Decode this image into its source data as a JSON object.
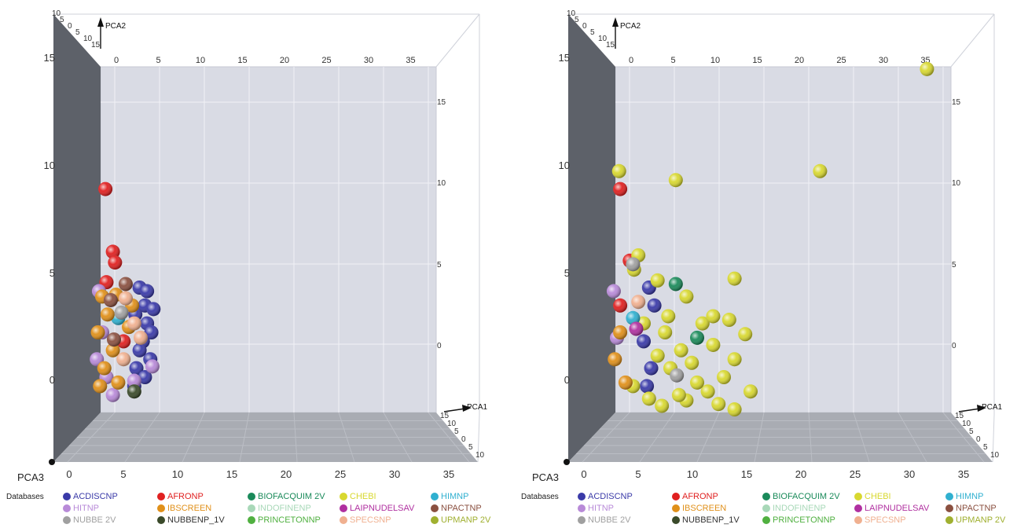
{
  "chart_data": [
    {
      "type": "scatter",
      "xlabel": "PCA1",
      "ylabel": "PCA2",
      "zlabel": "PCA3",
      "x_ticks": [
        "0",
        "5",
        "10",
        "15",
        "20",
        "25",
        "30",
        "35"
      ],
      "y_ticks": [
        "15",
        "10",
        "5",
        "0"
      ],
      "right_ticks": [
        "15",
        "10",
        "5",
        "0"
      ],
      "top_ticks": [
        "0",
        "5",
        "10",
        "15",
        "20",
        "25",
        "30",
        "35"
      ],
      "corner_ticks": [
        "10",
        "5",
        "0",
        "5",
        "10",
        "15"
      ],
      "depth_ticks": [
        "15",
        "10",
        "5",
        "0",
        "5",
        "10"
      ],
      "xlim": [
        0,
        35
      ],
      "ylim": [
        -2,
        17
      ],
      "grid": true,
      "series": [
        {
          "name": "ACDISCNP",
          "color": "#3a3aa8",
          "points": [
            [
              3.5,
              5
            ],
            [
              4,
              4
            ],
            [
              4.2,
              3
            ],
            [
              3.8,
              2
            ],
            [
              4.5,
              1
            ],
            [
              3.2,
              0.5
            ],
            [
              4,
              0
            ],
            [
              3,
              -0.5
            ],
            [
              4.6,
              2.5
            ],
            [
              3.5,
              1.5
            ],
            [
              4.2,
              4.8
            ],
            [
              3.1,
              3.5
            ],
            [
              4.8,
              3.8
            ]
          ]
        },
        {
          "name": "AFRONP",
          "color": "#e02020",
          "points": [
            [
              0.3,
              10.5
            ],
            [
              1,
              7
            ],
            [
              1.2,
              6.4
            ],
            [
              0.4,
              5.3
            ],
            [
              2,
              2
            ]
          ]
        },
        {
          "name": "BIOFACQUIM 2V",
          "color": "#1a8a5a",
          "points": []
        },
        {
          "name": "CHEBI",
          "color": "#d8d830",
          "points": []
        },
        {
          "name": "HIMNP",
          "color": "#30b0d0",
          "points": [
            [
              1.5,
              3.3
            ]
          ]
        },
        {
          "name": "HITNP",
          "color": "#b88ad8",
          "points": [
            [
              0,
              2.5
            ],
            [
              -0.5,
              1
            ],
            [
              0.4,
              0
            ],
            [
              1,
              -1
            ],
            [
              4.7,
              0.6
            ],
            [
              3,
              -0.2
            ],
            [
              -0.3,
              4.8
            ]
          ]
        },
        {
          "name": "IBSCREEN",
          "color": "#e0901a",
          "points": [
            [
              0,
              4.5
            ],
            [
              0.5,
              3.5
            ],
            [
              -0.4,
              2.5
            ],
            [
              1,
              1.5
            ],
            [
              0.2,
              0.5
            ],
            [
              1.5,
              -0.3
            ],
            [
              2.8,
              4
            ],
            [
              2.5,
              2.8
            ],
            [
              -0.2,
              -0.5
            ],
            [
              1.3,
              4.6
            ]
          ]
        },
        {
          "name": "LAIPNUDELSAV",
          "color": "#b030a0",
          "points": []
        },
        {
          "name": "NPACTNP",
          "color": "#8a5040",
          "points": [
            [
              0.8,
              4.3
            ],
            [
              2.2,
              5.2
            ],
            [
              1.1,
              2.1
            ]
          ]
        },
        {
          "name": "NUBBE 2V",
          "color": "#a0a0a0",
          "points": [
            [
              1.8,
              3.6
            ]
          ]
        },
        {
          "name": "NUBBENP_1V",
          "color": "#3a4a2a",
          "points": [
            [
              3,
              -0.8
            ]
          ]
        },
        {
          "name": "PRINCETONNP",
          "color": "#50b040",
          "points": []
        },
        {
          "name": "SPECSNP",
          "color": "#f0b090",
          "points": [
            [
              2.2,
              4.4
            ],
            [
              3,
              3
            ],
            [
              2,
              1
            ],
            [
              3.6,
              2.2
            ]
          ]
        },
        {
          "name": "UPMANP 2V",
          "color": "#a0b030",
          "points": []
        }
      ]
    },
    {
      "type": "scatter",
      "xlabel": "PCA1",
      "ylabel": "PCA2",
      "zlabel": "PCA3",
      "x_ticks": [
        "0",
        "5",
        "10",
        "15",
        "20",
        "25",
        "30",
        "35"
      ],
      "y_ticks": [
        "15",
        "10",
        "5",
        "0"
      ],
      "right_ticks": [
        "15",
        "10",
        "5",
        "0"
      ],
      "top_ticks": [
        "0",
        "5",
        "10",
        "15",
        "20",
        "25",
        "30",
        "35"
      ],
      "corner_ticks": [
        "10",
        "5",
        "0",
        "5",
        "10",
        "15"
      ],
      "depth_ticks": [
        "15",
        "10",
        "5",
        "0",
        "5",
        "10"
      ],
      "xlim": [
        0,
        35
      ],
      "ylim": [
        -2,
        17
      ],
      "grid": true,
      "series": [
        {
          "name": "ACDISCNP",
          "color": "#3a3aa8",
          "points": [
            [
              3,
              5
            ],
            [
              3.5,
              4
            ],
            [
              2.5,
              2
            ],
            [
              3.2,
              0.5
            ],
            [
              2.8,
              -0.5
            ]
          ]
        },
        {
          "name": "AFRONP",
          "color": "#e02020",
          "points": [
            [
              0.3,
              10.5
            ],
            [
              1.2,
              6.5
            ],
            [
              0.3,
              4
            ]
          ]
        },
        {
          "name": "BIOFACQUIM 2V",
          "color": "#1a8a5a",
          "points": [
            [
              5.5,
              5.2
            ],
            [
              7.5,
              2.2
            ]
          ]
        },
        {
          "name": "CHEBI",
          "color": "#d8d830",
          "points": [
            [
              29,
              17.2
            ],
            [
              19,
              11.5
            ],
            [
              5.5,
              11
            ],
            [
              0.2,
              11.5
            ],
            [
              11,
              5.5
            ],
            [
              2,
              6.8
            ],
            [
              3.8,
              5.4
            ],
            [
              1.6,
              6
            ],
            [
              6.5,
              4.5
            ],
            [
              8,
              3
            ],
            [
              10.5,
              3.2
            ],
            [
              12,
              2.4
            ],
            [
              9,
              1.8
            ],
            [
              11,
              1
            ],
            [
              7,
              0.8
            ],
            [
              10,
              0
            ],
            [
              12.5,
              -0.8
            ],
            [
              8.5,
              -0.8
            ],
            [
              9.5,
              -1.5
            ],
            [
              11,
              -1.8
            ],
            [
              6.5,
              -1.3
            ],
            [
              5,
              0.5
            ],
            [
              6,
              1.5
            ],
            [
              4.5,
              2.5
            ],
            [
              7.5,
              -0.3
            ],
            [
              5.8,
              -1
            ],
            [
              4.2,
              -1.6
            ],
            [
              3.8,
              1.2
            ],
            [
              4.8,
              3.4
            ],
            [
              9,
              3.4
            ],
            [
              2.5,
              3
            ],
            [
              1.5,
              -0.5
            ],
            [
              3,
              -1.2
            ]
          ]
        },
        {
          "name": "HIMNP",
          "color": "#30b0d0",
          "points": [
            [
              1.5,
              3.3
            ]
          ]
        },
        {
          "name": "HITNP",
          "color": "#b88ad8",
          "points": [
            [
              -0.3,
              4.8
            ],
            [
              0,
              2.2
            ]
          ]
        },
        {
          "name": "IBSCREEN",
          "color": "#e0901a",
          "points": [
            [
              0.3,
              2.5
            ],
            [
              -0.2,
              1
            ],
            [
              0.8,
              -0.3
            ]
          ]
        },
        {
          "name": "LAIPNUDELSAV",
          "color": "#b030a0",
          "points": [
            [
              1.8,
              2.7
            ]
          ]
        },
        {
          "name": "NPACTNP",
          "color": "#8a5040",
          "points": []
        },
        {
          "name": "NUBBE 2V",
          "color": "#a0a0a0",
          "points": [
            [
              1.5,
              6.3
            ],
            [
              5.6,
              0.1
            ]
          ]
        },
        {
          "name": "NUBBENP_1V",
          "color": "#3a4a2a",
          "points": []
        },
        {
          "name": "PRINCETONNP",
          "color": "#50b040",
          "points": []
        },
        {
          "name": "SPECSNP",
          "color": "#f0b090",
          "points": [
            [
              2,
              4.2
            ]
          ]
        },
        {
          "name": "UPMANP 2V",
          "color": "#a0b030",
          "points": []
        }
      ]
    }
  ],
  "legend": {
    "title": "Databases",
    "items": [
      {
        "label": "ACDISCNP",
        "color": "#3a3aa8",
        "text_color": "#3a3aa8"
      },
      {
        "label": "AFRONP",
        "color": "#e02020",
        "text_color": "#e02020"
      },
      {
        "label": "BIOFACQUIM 2V",
        "color": "#1a8a5a",
        "text_color": "#1a8a5a"
      },
      {
        "label": "CHEBI",
        "color": "#d8d830",
        "text_color": "#d8d830"
      },
      {
        "label": "HIMNP",
        "color": "#30b0d0",
        "text_color": "#30b0d0"
      },
      {
        "label": "HITNP",
        "color": "#b88ad8",
        "text_color": "#b88ad8"
      },
      {
        "label": "IBSCREEN",
        "color": "#e0901a",
        "text_color": "#e0901a"
      },
      {
        "label": "INDOFINENP",
        "color": "#a8d8b8",
        "text_color": "#a8d8b8"
      },
      {
        "label": "LAIPNUDELSAV",
        "color": "#b030a0",
        "text_color": "#b030a0"
      },
      {
        "label": "NPACTNP",
        "color": "#8a5040",
        "text_color": "#8a5040"
      },
      {
        "label": "NUBBE 2V",
        "color": "#a0a0a0",
        "text_color": "#a0a0a0"
      },
      {
        "label": "NUBBENP_1V",
        "color": "#3a4a2a",
        "text_color": "#333333"
      },
      {
        "label": "PRINCETONNP",
        "color": "#50b040",
        "text_color": "#50b040"
      },
      {
        "label": "SPECSNP",
        "color": "#f0b090",
        "text_color": "#f0b090"
      },
      {
        "label": "UPMANP 2V",
        "color": "#a0b030",
        "text_color": "#a0b030"
      }
    ]
  }
}
